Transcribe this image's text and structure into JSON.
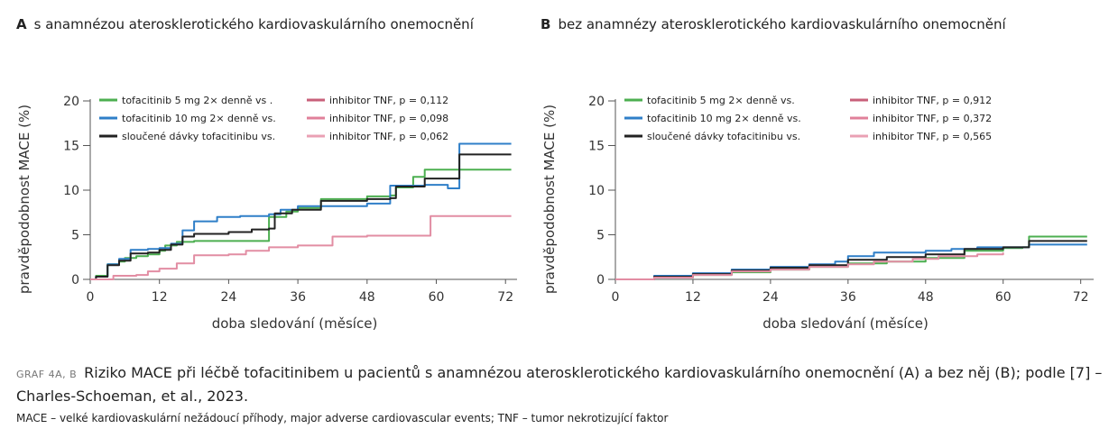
{
  "panels": [
    {
      "letter": "A",
      "title": "s anamnézou aterosklerotického kardiovaskulárního onemocnění"
    },
    {
      "letter": "B",
      "title": "bez anamnézy aterosklerotického kardiovaskulárního onemocnění"
    }
  ],
  "caption": {
    "tag": "GRAF 4A, B",
    "text": "Riziko MACE při léčbě tofacitinibem u pacientů s anamnézou aterosklerotického kardiovaskulárního onemocnění (A) a bez něj (B); podle [7] – Charles-Schoeman, et al., 2023."
  },
  "footnote": "MACE – velké kardiovaskulární nežádoucí příhody, major adverse cardiovascular events; TNF – tumor nekrotizující faktor",
  "chart_data": [
    {
      "type": "line",
      "title": "s anamnézou aterosklerotického kardiovaskulárního onemocnění",
      "xlabel": "doba sledování (měsíce)",
      "ylabel": "pravděpodobnost MACE (%)",
      "xlim": [
        0,
        74
      ],
      "ylim": [
        0,
        20
      ],
      "xticks": [
        0,
        12,
        24,
        36,
        48,
        60,
        72
      ],
      "yticks": [
        0,
        5,
        10,
        15,
        20
      ],
      "grid": false,
      "legend_position": "top-left",
      "legend": [
        {
          "label": "tofacitinib 5 mg 2× denně vs .",
          "color": "#4caf50"
        },
        {
          "label": "tofacitinib 10 mg 2× denně vs.",
          "color": "#2f7fc8"
        },
        {
          "label": "sloučené dávky tofacitinibu vs.",
          "color": "#222222"
        },
        {
          "label": "inhibitor TNF, p = 0,112",
          "color": "#c8607a"
        },
        {
          "label": "inhibitor TNF, p = 0,098",
          "color": "#e0809a"
        },
        {
          "label": "inhibitor TNF, p = 0,062",
          "color": "#eaa0b4"
        }
      ],
      "series": [
        {
          "color": "#4caf50",
          "points": [
            [
              0,
              0
            ],
            [
              1,
              0.4
            ],
            [
              3,
              1.7
            ],
            [
              5,
              2.0
            ],
            [
              6,
              2.4
            ],
            [
              8,
              2.6
            ],
            [
              10,
              2.8
            ],
            [
              12,
              3.2
            ],
            [
              13,
              3.8
            ],
            [
              15,
              4.2
            ],
            [
              18,
              4.3
            ],
            [
              26,
              4.3
            ],
            [
              30,
              4.3
            ],
            [
              31,
              7.0
            ],
            [
              34,
              7.6
            ],
            [
              36,
              8.0
            ],
            [
              40,
              9.0
            ],
            [
              48,
              9.3
            ],
            [
              52,
              9.4
            ],
            [
              53,
              10.3
            ],
            [
              56,
              11.5
            ],
            [
              58,
              12.3
            ],
            [
              64,
              12.3
            ],
            [
              73,
              12.3
            ]
          ]
        },
        {
          "color": "#2f7fc8",
          "points": [
            [
              0,
              0
            ],
            [
              1,
              0.3
            ],
            [
              3,
              1.7
            ],
            [
              5,
              2.3
            ],
            [
              7,
              3.3
            ],
            [
              10,
              3.4
            ],
            [
              12,
              3.5
            ],
            [
              14,
              4.0
            ],
            [
              16,
              5.5
            ],
            [
              18,
              6.5
            ],
            [
              22,
              7.0
            ],
            [
              26,
              7.1
            ],
            [
              31,
              7.3
            ],
            [
              33,
              7.8
            ],
            [
              36,
              8.2
            ],
            [
              48,
              8.5
            ],
            [
              51,
              8.5
            ],
            [
              52,
              10.5
            ],
            [
              58,
              10.6
            ],
            [
              62,
              10.2
            ],
            [
              64,
              15.2
            ],
            [
              73,
              15.2
            ]
          ]
        },
        {
          "color": "#222222",
          "points": [
            [
              0,
              0
            ],
            [
              1,
              0.3
            ],
            [
              3,
              1.6
            ],
            [
              5,
              2.1
            ],
            [
              7,
              2.9
            ],
            [
              10,
              3.0
            ],
            [
              12,
              3.3
            ],
            [
              14,
              3.9
            ],
            [
              16,
              4.8
            ],
            [
              18,
              5.1
            ],
            [
              24,
              5.3
            ],
            [
              28,
              5.6
            ],
            [
              31,
              5.7
            ],
            [
              32,
              7.4
            ],
            [
              35,
              7.8
            ],
            [
              40,
              8.8
            ],
            [
              48,
              9.0
            ],
            [
              52,
              9.1
            ],
            [
              53,
              10.4
            ],
            [
              58,
              11.3
            ],
            [
              61,
              11.3
            ],
            [
              64,
              14.0
            ],
            [
              73,
              14.0
            ]
          ]
        },
        {
          "color": "#e28da3",
          "points": [
            [
              0,
              0
            ],
            [
              3,
              0
            ],
            [
              4,
              0.4
            ],
            [
              8,
              0.5
            ],
            [
              10,
              0.9
            ],
            [
              12,
              1.2
            ],
            [
              15,
              1.8
            ],
            [
              18,
              2.7
            ],
            [
              24,
              2.8
            ],
            [
              27,
              3.2
            ],
            [
              31,
              3.6
            ],
            [
              36,
              3.8
            ],
            [
              42,
              4.1
            ],
            [
              42,
              4.8
            ],
            [
              48,
              4.9
            ],
            [
              58,
              4.9
            ],
            [
              59,
              7.1
            ],
            [
              73,
              7.1
            ]
          ]
        }
      ]
    },
    {
      "type": "line",
      "title": "bez anamnézy aterosklerotického kardiovaskulárního onemocnění",
      "xlabel": "doba sledování (měsíce)",
      "ylabel": "pravděpodobnost MACE (%)",
      "xlim": [
        0,
        74
      ],
      "ylim": [
        0,
        20
      ],
      "xticks": [
        0,
        12,
        24,
        36,
        48,
        60,
        72
      ],
      "yticks": [
        0,
        5,
        10,
        15,
        20
      ],
      "grid": false,
      "legend_position": "top-left",
      "legend": [
        {
          "label": "tofacitinib 5 mg 2× denně vs.",
          "color": "#4caf50"
        },
        {
          "label": "tofacitinib 10 mg 2× denně vs.",
          "color": "#2f7fc8"
        },
        {
          "label": "sloučené dávky tofacitinibu vs.",
          "color": "#222222"
        },
        {
          "label": "inhibitor TNF, p = 0,912",
          "color": "#c8607a"
        },
        {
          "label": "inhibitor TNF, p = 0,372",
          "color": "#e0809a"
        },
        {
          "label": "inhibitor TNF, p = 0,565",
          "color": "#eaa0b4"
        }
      ],
      "series": [
        {
          "color": "#4caf50",
          "points": [
            [
              0,
              0
            ],
            [
              6,
              0.2
            ],
            [
              12,
              0.5
            ],
            [
              18,
              0.8
            ],
            [
              24,
              1.1
            ],
            [
              30,
              1.4
            ],
            [
              36,
              1.8
            ],
            [
              42,
              2.0
            ],
            [
              48,
              2.4
            ],
            [
              54,
              3.2
            ],
            [
              60,
              3.5
            ],
            [
              63,
              3.6
            ],
            [
              64,
              4.8
            ],
            [
              73,
              4.8
            ]
          ]
        },
        {
          "color": "#2f7fc8",
          "points": [
            [
              0,
              0
            ],
            [
              6,
              0.4
            ],
            [
              12,
              0.7
            ],
            [
              18,
              1.1
            ],
            [
              24,
              1.4
            ],
            [
              30,
              1.7
            ],
            [
              34,
              2.0
            ],
            [
              36,
              2.6
            ],
            [
              40,
              3.0
            ],
            [
              48,
              3.2
            ],
            [
              52,
              3.4
            ],
            [
              56,
              3.6
            ],
            [
              64,
              3.9
            ],
            [
              73,
              3.9
            ]
          ]
        },
        {
          "color": "#222222",
          "points": [
            [
              0,
              0
            ],
            [
              6,
              0.3
            ],
            [
              12,
              0.6
            ],
            [
              18,
              1.0
            ],
            [
              24,
              1.3
            ],
            [
              30,
              1.6
            ],
            [
              36,
              2.2
            ],
            [
              42,
              2.5
            ],
            [
              48,
              2.8
            ],
            [
              54,
              3.4
            ],
            [
              60,
              3.6
            ],
            [
              64,
              4.3
            ],
            [
              73,
              4.3
            ]
          ]
        },
        {
          "color": "#e28da3",
          "points": [
            [
              0,
              0
            ],
            [
              6,
              0.2
            ],
            [
              12,
              0.5
            ],
            [
              18,
              0.9
            ],
            [
              24,
              1.1
            ],
            [
              30,
              1.4
            ],
            [
              36,
              1.7
            ],
            [
              40,
              2.0
            ],
            [
              46,
              2.3
            ],
            [
              50,
              2.6
            ],
            [
              56,
              2.8
            ],
            [
              60,
              3.0
            ]
          ]
        }
      ]
    }
  ]
}
